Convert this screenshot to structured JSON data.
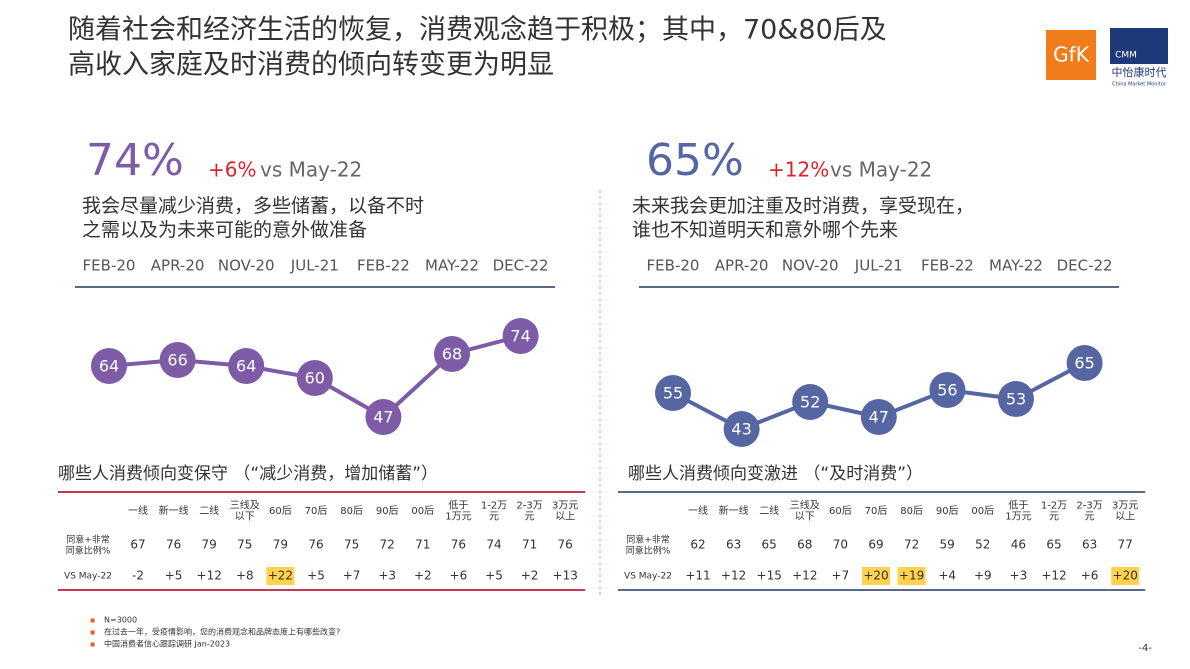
{
  "title": "随着社会和经济生活的恢复，消费观念趋于积极；其中，70&80后及\n高收入家庭及时消费的倾向转变更为明显",
  "logos": {
    "gfk": "GfK",
    "cmm": "CMM",
    "cmm_name": "中怡康时代",
    "cmm_en": "China Market Monitor"
  },
  "chart_data": [
    {
      "type": "line",
      "headline": "74%",
      "change": "+6%",
      "compare": "vs May-22",
      "statement": "我会尽量减少消费，多些储蓄，以备不时\n之需以及为未来可能的意外做准备",
      "categories": [
        "FEB-20",
        "APR-20",
        "NOV-20",
        "JUL-21",
        "FEB-22",
        "MAY-22",
        "DEC-22"
      ],
      "values": [
        64,
        66,
        64,
        60,
        47,
        68,
        74
      ],
      "color": "#7d5ba6",
      "ylim": [
        40,
        80
      ]
    },
    {
      "type": "line",
      "headline": "65%",
      "change": "+12%",
      "compare": "vs May-22",
      "statement": "未来我会更加注重及时消费，享受现在，\n谁也不知道明天和意外哪个先来",
      "categories": [
        "FEB-20",
        "APR-20",
        "NOV-20",
        "JUL-21",
        "FEB-22",
        "MAY-22",
        "DEC-22"
      ],
      "values": [
        55,
        43,
        52,
        47,
        56,
        53,
        65
      ],
      "color": "#5566a3",
      "ylim": [
        40,
        80
      ]
    }
  ],
  "tables": [
    {
      "title": "哪些人消费倾向变保守 （“减少消费，增加储蓄”）",
      "line_color": "#c8394f",
      "columns": [
        "一线",
        "新一线",
        "二线",
        "三线及\n以下",
        "60后",
        "70后",
        "80后",
        "90后",
        "00后",
        "低于\n1万元",
        "1-2万\n元",
        "2-3万\n元",
        "3万元\n以上"
      ],
      "rows": [
        {
          "label": "同意+非常\n同意比例%",
          "cells": [
            67,
            76,
            79,
            75,
            79,
            76,
            75,
            72,
            71,
            76,
            74,
            71,
            76
          ],
          "highlight": []
        },
        {
          "label": "VS May-22",
          "cells": [
            "-2",
            "+5",
            "+12",
            "+8",
            "+22",
            "+5",
            "+7",
            "+3",
            "+2",
            "+6",
            "+5",
            "+2",
            "+13"
          ],
          "highlight": [
            4
          ]
        }
      ]
    },
    {
      "title": "哪些人消费倾向变激进 （“及时消费”）",
      "line_color": "#5a6890",
      "columns": [
        "一线",
        "新一线",
        "二线",
        "三线及\n以下",
        "60后",
        "70后",
        "80后",
        "90后",
        "00后",
        "低于\n1万元",
        "1-2万\n元",
        "2-3万\n元",
        "3万元\n以上"
      ],
      "rows": [
        {
          "label": "同意+非常\n同意比例%",
          "cells": [
            62,
            63,
            65,
            68,
            70,
            69,
            72,
            59,
            52,
            46,
            65,
            63,
            77
          ],
          "highlight": []
        },
        {
          "label": "VS May-22",
          "cells": [
            "+11",
            "+12",
            "+15",
            "+12",
            "+7",
            "+20",
            "+19",
            "+4",
            "+9",
            "+3",
            "+12",
            "+6",
            "+20"
          ],
          "highlight": [
            5,
            6,
            12
          ]
        }
      ]
    }
  ],
  "notes": [
    "N=3000",
    "在过去一年，受疫情影响，您的消费观念和品牌态度上有哪些改变?",
    "中国消费者信心跟踪调研 Jan-2023"
  ],
  "page_number": "-4-"
}
